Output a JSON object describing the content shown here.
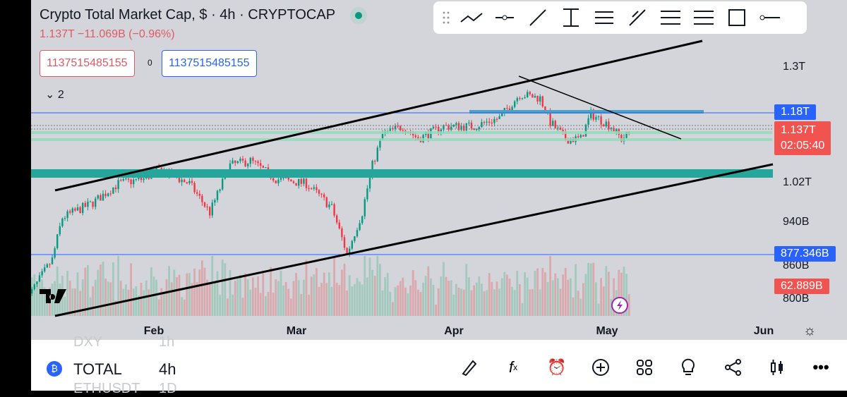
{
  "header": {
    "title": "Crypto Total Market Cap, $ · 4h · CRYPTOCAP",
    "change": "1.137T  −11.069B (−0.96%)",
    "sell_price": "1137515485155",
    "spread": "0",
    "buy_price": "1137515485155",
    "indicators_collapsed": "2"
  },
  "toolbar": {
    "icons": [
      "drag-handle",
      "trend-angle",
      "horizontal-ray",
      "trend-line",
      "vertical-line",
      "parallel-channel",
      "pitchfork",
      "fib-retracement",
      "fib-extension",
      "rectangle",
      "horizontal-line"
    ]
  },
  "price_axis": {
    "labels": [
      "1.3T",
      "1.02T",
      "940B",
      "860B",
      "800B"
    ],
    "scale": "log",
    "tags": {
      "level_high": "1.18T",
      "last_price": "1.137T",
      "countdown": "02:05:40",
      "level_low": "877.346B",
      "volume": "62.889B"
    }
  },
  "time_axis": {
    "labels": [
      "Feb",
      "Mar",
      "Apr",
      "May",
      "Jun"
    ]
  },
  "colors": {
    "up": "#089981",
    "down": "#f23645",
    "level": "#2962ff",
    "zone": "#26a69a"
  },
  "chart_data": {
    "type": "candlestick",
    "symbol": "TOTAL",
    "interval": "4h",
    "scale": "log",
    "price_path": [
      [
        "01-07",
        0.8
      ],
      [
        "01-12",
        0.87
      ],
      [
        "01-14",
        0.95
      ],
      [
        "01-20",
        0.98
      ],
      [
        "01-25",
        1.02
      ],
      [
        "01-30",
        1.03
      ],
      [
        "02-02",
        1.05
      ],
      [
        "02-08",
        1.02
      ],
      [
        "02-12",
        0.96
      ],
      [
        "02-16",
        1.06
      ],
      [
        "02-20",
        1.07
      ],
      [
        "02-25",
        1.03
      ],
      [
        "03-03",
        1.02
      ],
      [
        "03-08",
        0.97
      ],
      [
        "03-11",
        0.88
      ],
      [
        "03-14",
        0.96
      ],
      [
        "03-16",
        1.06
      ],
      [
        "03-18",
        1.13
      ],
      [
        "03-22",
        1.15
      ],
      [
        "03-25",
        1.12
      ],
      [
        "03-30",
        1.15
      ],
      [
        "04-05",
        1.15
      ],
      [
        "04-10",
        1.17
      ],
      [
        "04-14",
        1.23
      ],
      [
        "04-18",
        1.22
      ],
      [
        "04-20",
        1.16
      ],
      [
        "04-23",
        1.12
      ],
      [
        "04-26",
        1.12
      ],
      [
        "04-28",
        1.18
      ],
      [
        "05-02",
        1.15
      ],
      [
        "05-04",
        1.12
      ],
      [
        "05-06",
        1.137
      ]
    ],
    "levels": [
      1.18,
      0.877346
    ]
  },
  "bottom": {
    "symbol": "TOTAL",
    "interval": "4h",
    "prev_symbol": "DXY",
    "prev_interval": "1h",
    "next_symbol": "ETHUSDT",
    "next_interval": "1D"
  }
}
